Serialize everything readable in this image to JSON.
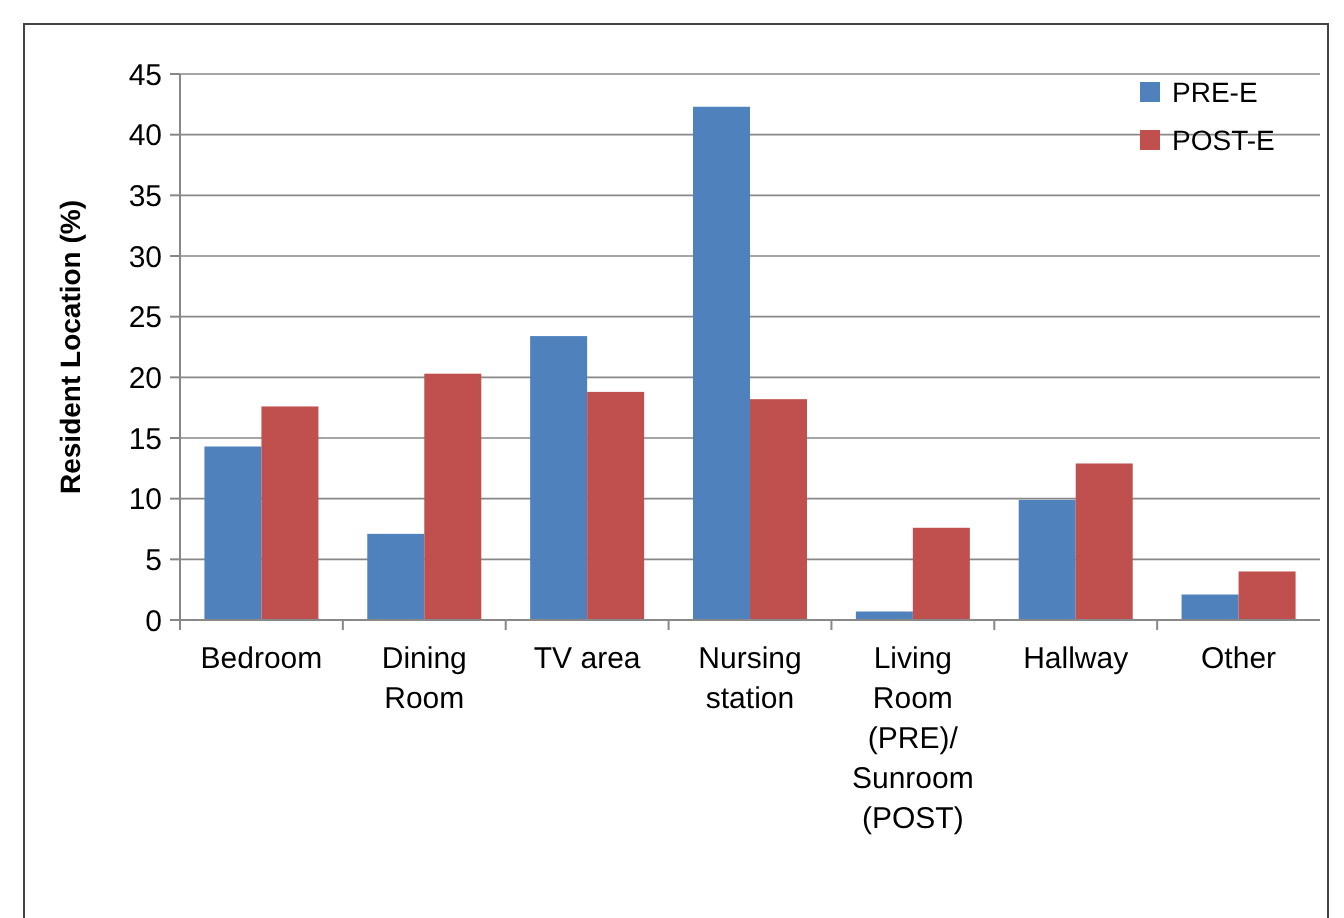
{
  "chart_data": {
    "type": "bar",
    "ylabel": "Resident Location (%)",
    "categories": [
      "Bedroom",
      "Dining Room",
      "TV area",
      "Nursing station",
      "Living Room (PRE)/ Sunroom (POST)",
      "Hallway",
      "Other"
    ],
    "series": [
      {
        "name": "PRE-E",
        "color": "#4f81bd",
        "values": [
          14.3,
          7.1,
          23.4,
          42.3,
          0.7,
          9.9,
          2.1
        ]
      },
      {
        "name": "POST-E",
        "color": "#c0504d",
        "values": [
          17.6,
          20.3,
          18.8,
          18.2,
          7.6,
          12.9,
          4.0
        ]
      }
    ],
    "ylim": [
      0,
      45
    ],
    "yticks": [
      0,
      5,
      10,
      15,
      20,
      25,
      30,
      35,
      40,
      45
    ],
    "grid": "y",
    "legend": "top right"
  }
}
